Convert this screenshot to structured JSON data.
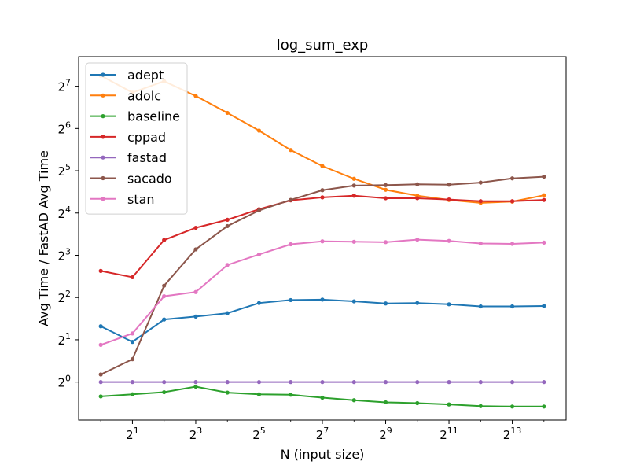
{
  "chart_data": {
    "type": "line",
    "title": "log_sum_exp",
    "xlabel": "N (input size)",
    "ylabel": "Avg Time / FastAD Avg Time",
    "x_scale": "log2",
    "y_scale": "log2",
    "xlim_log2": [
      -0.7,
      14.7
    ],
    "ylim_log2": [
      -0.9,
      7.7
    ],
    "x_tick_exponents": [
      1,
      3,
      5,
      7,
      9,
      11,
      13
    ],
    "y_tick_exponents": [
      0,
      1,
      2,
      3,
      4,
      5,
      6,
      7
    ],
    "tick_base": "2",
    "legend_position": "upper-left",
    "grid": false,
    "x_log2": [
      0,
      1,
      2,
      3,
      4,
      5,
      6,
      7,
      8,
      9,
      10,
      11,
      12,
      13,
      14
    ],
    "series": [
      {
        "name": "adept",
        "color": "#1f77b4",
        "y_log2": [
          1.32,
          0.95,
          1.48,
          1.55,
          1.63,
          1.87,
          1.94,
          1.95,
          1.91,
          1.86,
          1.87,
          1.84,
          1.79,
          1.79,
          1.8
        ]
      },
      {
        "name": "adolc",
        "color": "#ff7f0e",
        "y_log2": [
          7.25,
          6.85,
          7.12,
          6.77,
          6.37,
          5.95,
          5.49,
          5.11,
          4.81,
          4.55,
          4.41,
          4.31,
          4.24,
          4.27,
          4.42
        ]
      },
      {
        "name": "baseline",
        "color": "#2ca02c",
        "y_log2": [
          -0.34,
          -0.29,
          -0.24,
          -0.11,
          -0.25,
          -0.29,
          -0.3,
          -0.37,
          -0.43,
          -0.48,
          -0.5,
          -0.53,
          -0.57,
          -0.58,
          -0.58
        ]
      },
      {
        "name": "cppad",
        "color": "#d62728",
        "y_log2": [
          2.63,
          2.48,
          3.36,
          3.65,
          3.84,
          4.09,
          4.3,
          4.37,
          4.41,
          4.35,
          4.35,
          4.32,
          4.28,
          4.28,
          4.31
        ]
      },
      {
        "name": "fastad",
        "color": "#9467bd",
        "y_log2": [
          0,
          0,
          0,
          0,
          0,
          0,
          0,
          0,
          0,
          0,
          0,
          0,
          0,
          0,
          0
        ]
      },
      {
        "name": "sacado",
        "color": "#8c564b",
        "y_log2": [
          0.18,
          0.54,
          2.28,
          3.14,
          3.69,
          4.06,
          4.31,
          4.54,
          4.65,
          4.66,
          4.68,
          4.67,
          4.72,
          4.82,
          4.86
        ]
      },
      {
        "name": "stan",
        "color": "#e377c2",
        "y_log2": [
          0.88,
          1.15,
          2.03,
          2.13,
          2.77,
          3.02,
          3.26,
          3.33,
          3.32,
          3.31,
          3.37,
          3.34,
          3.28,
          3.27,
          3.3
        ]
      }
    ]
  }
}
